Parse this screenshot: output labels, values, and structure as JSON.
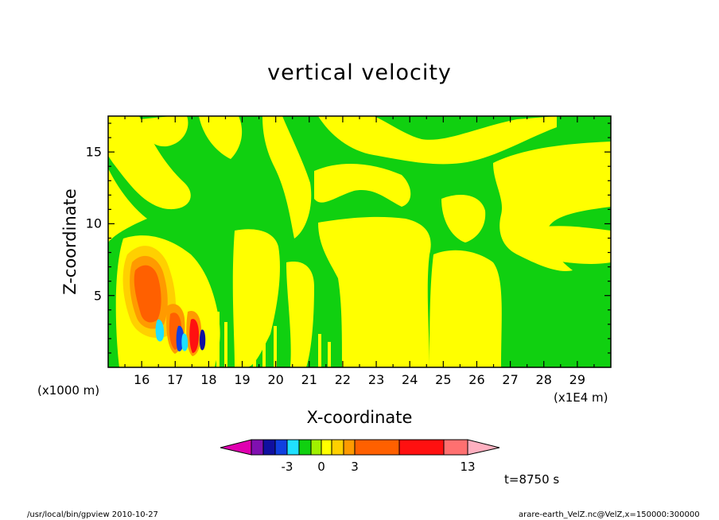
{
  "title": "vertical velocity",
  "time_label": "t=8750 s",
  "footer": {
    "left": "/usr/local/bin/gpview   2010-10-27",
    "right": "arare-earth_VelZ.nc@VelZ,x=150000:300000"
  },
  "colors": {
    "background": "#ffffff",
    "levels": [
      "#e000b0",
      "#8010b0",
      "#1010a0",
      "#1040e0",
      "#20e0ff",
      "#10d010",
      "#a0f000",
      "#ffff00",
      "#ffd000",
      "#ff9a00",
      "#ff6000",
      "#ff1010",
      "#ff7070",
      "#ffb0c0"
    ]
  },
  "chart_data": {
    "type": "contour",
    "title": "vertical velocity",
    "xlabel": "X-coordinate",
    "ylabel": "Z-coordinate",
    "x_unit_left": "(x1000 m)",
    "x_unit_right": "(x1E4 m)",
    "xlim": [
      15.0,
      30.0
    ],
    "ylim": [
      0.0,
      17.5
    ],
    "x_ticks": [
      16,
      17,
      18,
      19,
      20,
      21,
      22,
      23,
      24,
      25,
      26,
      27,
      28,
      29
    ],
    "x_tick_labels": [
      "16",
      "17",
      "18",
      "19",
      "20",
      "21",
      "22",
      "23",
      "24",
      "25",
      "26",
      "27",
      "28",
      "29"
    ],
    "y_ticks": [
      5,
      10,
      15
    ],
    "y_tick_labels": [
      "5",
      "10",
      "15"
    ],
    "colorbar": {
      "labels": [
        {
          "text": "-3",
          "level": -3
        },
        {
          "text": "0",
          "level": 0
        },
        {
          "text": "3",
          "level": 3
        },
        {
          "text": "13",
          "level": 13
        }
      ]
    },
    "regions": [
      {
        "name": "updraft-core",
        "x": 16.5,
        "y": 5.5,
        "level": 11
      },
      {
        "name": "updraft-outer",
        "x": 16.5,
        "y": 5.5,
        "level": 5
      },
      {
        "name": "downdraft-cell",
        "x": 17.2,
        "y": 2.0,
        "level": -4
      },
      {
        "name": "updraft-cell",
        "x": 17.5,
        "y": 2.0,
        "level": 10
      }
    ]
  }
}
